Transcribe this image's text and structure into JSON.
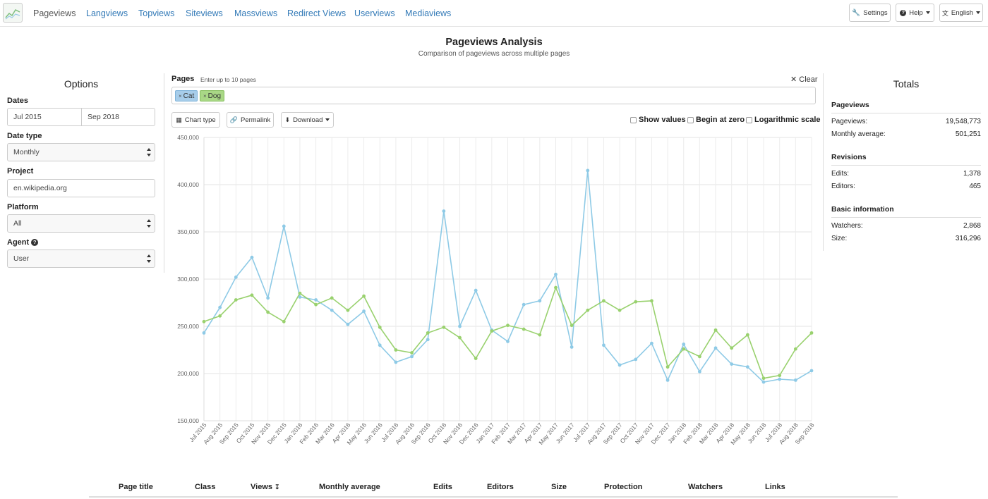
{
  "nav": {
    "links": [
      "Pageviews",
      "Langviews",
      "Topviews",
      "Siteviews",
      "Massviews",
      "Redirect Views",
      "Userviews",
      "Mediaviews"
    ],
    "settings": "Settings",
    "help": "Help",
    "language": "English"
  },
  "header": {
    "title": "Pageviews Analysis",
    "subtitle": "Comparison of pageviews across multiple pages"
  },
  "options": {
    "title": "Options",
    "dates_label": "Dates",
    "date_start": "Jul 2015",
    "date_end": "Sep 2018",
    "date_type_label": "Date type",
    "date_type": "Monthly",
    "project_label": "Project",
    "project": "en.wikipedia.org",
    "platform_label": "Platform",
    "platform": "All",
    "agent_label": "Agent",
    "agent": "User"
  },
  "pages": {
    "label": "Pages",
    "hint": "Enter up to 10 pages",
    "clear": "Clear",
    "tags": [
      "Cat",
      "Dog"
    ]
  },
  "toolbar": {
    "chart_type": "Chart type",
    "permalink": "Permalink",
    "download": "Download",
    "show_values": "Show values",
    "begin_at_zero": "Begin at zero",
    "log_scale": "Logarithmic scale"
  },
  "colors": {
    "cat": "#8ecae6",
    "dog": "#99d16e",
    "cat_tag": "#a7cdea",
    "dog_tag": "#a9d886"
  },
  "chart_data": {
    "type": "line",
    "ylim": [
      150000,
      450000
    ],
    "yticks": [
      "150,000",
      "200,000",
      "250,000",
      "300,000",
      "350,000",
      "400,000",
      "450,000"
    ],
    "categories": [
      "Jul 2015",
      "Aug 2015",
      "Sep 2015",
      "Oct 2015",
      "Nov 2015",
      "Dec 2015",
      "Jan 2016",
      "Feb 2016",
      "Mar 2016",
      "Apr 2016",
      "May 2016",
      "Jun 2016",
      "Jul 2016",
      "Aug 2016",
      "Sep 2016",
      "Oct 2016",
      "Nov 2016",
      "Dec 2016",
      "Jan 2017",
      "Feb 2017",
      "Mar 2017",
      "Apr 2017",
      "May 2017",
      "Jun 2017",
      "Jul 2017",
      "Aug 2017",
      "Sep 2017",
      "Oct 2017",
      "Nov 2017",
      "Dec 2017",
      "Jan 2018",
      "Feb 2018",
      "Mar 2018",
      "Apr 2018",
      "May 2018",
      "Jun 2018",
      "Jul 2018",
      "Aug 2018",
      "Sep 2018"
    ],
    "series": [
      {
        "name": "Cat",
        "values": [
          243000,
          270000,
          302000,
          323000,
          280000,
          356000,
          281000,
          278000,
          267000,
          252000,
          266000,
          230000,
          212000,
          218000,
          236000,
          372000,
          250000,
          288000,
          246000,
          234000,
          273000,
          277000,
          305000,
          228000,
          415000,
          230000,
          209000,
          215000,
          232000,
          193000,
          231000,
          202000,
          227000,
          210000,
          207000,
          191000,
          194000,
          193000,
          203000
        ]
      },
      {
        "name": "Dog",
        "values": [
          255000,
          261000,
          278000,
          283000,
          265000,
          255000,
          285000,
          273000,
          280000,
          267000,
          282000,
          249000,
          225000,
          222000,
          243000,
          249000,
          238000,
          216000,
          245000,
          251000,
          247000,
          241000,
          291000,
          251000,
          267000,
          277000,
          267000,
          276000,
          277000,
          207000,
          226000,
          218000,
          246000,
          227000,
          241000,
          195000,
          198000,
          226000,
          243000
        ]
      }
    ]
  },
  "totals": {
    "title": "Totals",
    "pageviews_head": "Pageviews",
    "pageviews_label": "Pageviews:",
    "pageviews_value": "19,548,773",
    "monthly_avg_label": "Monthly average:",
    "monthly_avg_value": "501,251",
    "revisions_head": "Revisions",
    "edits_label": "Edits:",
    "edits_value": "1,378",
    "editors_label": "Editors:",
    "editors_value": "465",
    "basic_head": "Basic information",
    "watchers_label": "Watchers:",
    "watchers_value": "2,868",
    "size_label": "Size:",
    "size_value": "316,296"
  },
  "table": {
    "headers": [
      "Page title",
      "Class",
      "Views",
      "Monthly average",
      "Edits",
      "Editors",
      "Size",
      "Protection",
      "Watchers",
      "Links"
    ]
  }
}
